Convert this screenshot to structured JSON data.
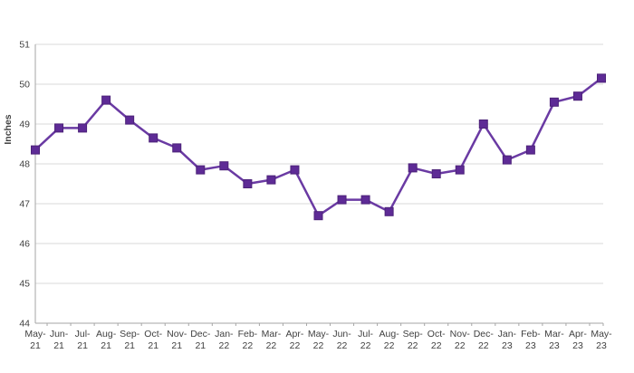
{
  "chart_data": {
    "type": "line",
    "title": "",
    "xlabel": "",
    "ylabel": "Inches",
    "categories": [
      "May-21",
      "Jun-21",
      "Jul-21",
      "Aug-21",
      "Sep-21",
      "Oct-21",
      "Nov-21",
      "Dec-21",
      "Jan-22",
      "Feb-22",
      "Mar-22",
      "Apr-22",
      "May-22",
      "Jun-22",
      "Jul-22",
      "Aug-22",
      "Sep-22",
      "Oct-22",
      "Nov-22",
      "Dec-22",
      "Jan-23",
      "Feb-23",
      "Mar-23",
      "Apr-23",
      "May-23"
    ],
    "values": [
      48.35,
      48.9,
      48.9,
      49.6,
      49.1,
      48.65,
      48.4,
      47.85,
      47.95,
      47.5,
      47.6,
      47.85,
      46.7,
      47.1,
      47.1,
      46.8,
      47.9,
      47.75,
      47.85,
      49.0,
      48.1,
      48.35,
      49.55,
      49.7,
      50.15
    ],
    "ylim": [
      44,
      51
    ],
    "y_ticks": [
      44,
      45,
      46,
      47,
      48,
      49,
      50,
      51
    ],
    "grid": true,
    "legend": false,
    "marker": "square",
    "colors": {
      "line": "#6a3aa3",
      "marker_fill": "#5e2b96",
      "marker_border": "#4c2279",
      "gridline": "#d9d9d9",
      "axis": "#a6a6a6",
      "tick": "#a6a6a6",
      "label_text": "#404040"
    }
  }
}
